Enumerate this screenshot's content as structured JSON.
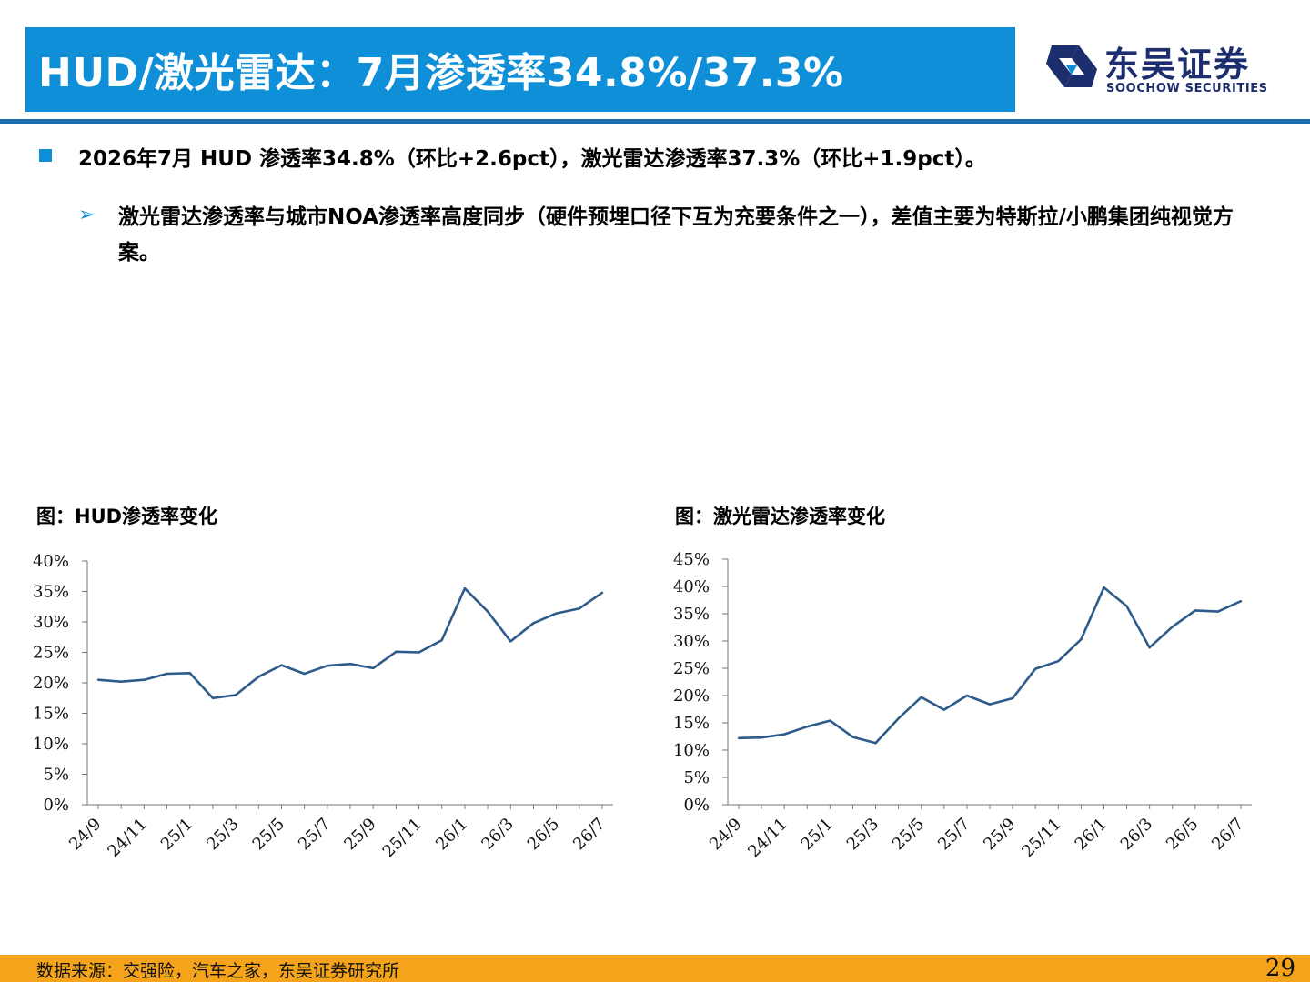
{
  "header": {
    "title": "HUD/激光雷达：7月渗透率34.8%/37.3%",
    "logo_cn": "东吴证券",
    "logo_en": "SOOCHOW SECURITIES",
    "accent": "#0e8fd8",
    "logo_color": "#1d2e6e"
  },
  "bullets": {
    "main": "2026年7月 HUD 渗透率34.8%（环比+2.6pct），激光雷达渗透率37.3%（环比+1.9pct）。",
    "sub_marker": "➢",
    "sub": "激光雷达渗透率与城市NOA渗透率高度同步（硬件预埋口径下互为充要条件之一），差值主要为特斯拉/小鹏集团纯视觉方案。"
  },
  "chart_data": [
    {
      "type": "line",
      "title": "图：HUD渗透率变化",
      "x": [
        "24/9",
        "24/10",
        "24/11",
        "24/12",
        "25/1",
        "25/2",
        "25/3",
        "25/4",
        "25/5",
        "25/6",
        "25/7",
        "25/8",
        "25/9",
        "25/10",
        "25/11",
        "25/12",
        "26/1",
        "26/2",
        "26/3",
        "26/4",
        "26/5",
        "26/6",
        "26/7"
      ],
      "x_tick_labels": [
        "24/9",
        "24/11",
        "25/1",
        "25/3",
        "25/5",
        "25/7",
        "25/9",
        "25/11",
        "26/1",
        "26/3",
        "26/5",
        "26/7"
      ],
      "series": [
        {
          "values": [
            20.5,
            20.2,
            20.5,
            21.5,
            21.6,
            17.5,
            18.0,
            21.0,
            22.9,
            21.5,
            22.8,
            23.1,
            22.4,
            25.1,
            25.0,
            27.0,
            35.5,
            31.7,
            26.8,
            29.8,
            31.4,
            32.2,
            34.8
          ]
        }
      ],
      "ylim": [
        0,
        40
      ],
      "y_ticks": [
        0,
        5,
        10,
        15,
        20,
        25,
        30,
        35,
        40
      ],
      "y_tick_labels": [
        "0%",
        "5%",
        "10%",
        "15%",
        "20%",
        "25%",
        "30%",
        "35%",
        "40%"
      ],
      "line_color": "#2e5b8a",
      "grid": false
    },
    {
      "type": "line",
      "title": "图：激光雷达渗透率变化",
      "x": [
        "24/9",
        "24/10",
        "24/11",
        "24/12",
        "25/1",
        "25/2",
        "25/3",
        "25/4",
        "25/5",
        "25/6",
        "25/7",
        "25/8",
        "25/9",
        "25/10",
        "25/11",
        "25/12",
        "26/1",
        "26/2",
        "26/3",
        "26/4",
        "26/5",
        "26/6",
        "26/7"
      ],
      "x_tick_labels": [
        "24/9",
        "24/11",
        "25/1",
        "25/3",
        "25/5",
        "25/7",
        "25/9",
        "25/11",
        "26/1",
        "26/3",
        "26/5",
        "26/7"
      ],
      "series": [
        {
          "values": [
            12.2,
            12.3,
            12.9,
            14.3,
            15.4,
            12.4,
            11.3,
            15.8,
            19.7,
            17.4,
            20.0,
            18.4,
            19.5,
            24.9,
            26.3,
            30.3,
            39.8,
            36.4,
            28.8,
            32.6,
            35.6,
            35.4,
            37.3
          ]
        }
      ],
      "ylim": [
        0,
        45
      ],
      "y_ticks": [
        0,
        5,
        10,
        15,
        20,
        25,
        30,
        35,
        40,
        45
      ],
      "y_tick_labels": [
        "0%",
        "5%",
        "10%",
        "15%",
        "20%",
        "25%",
        "30%",
        "35%",
        "40%",
        "45%"
      ],
      "line_color": "#2e5b8a",
      "grid": false
    }
  ],
  "footer": {
    "source": "数据来源：交强险，汽车之家，东吴证券研究所",
    "page": "29",
    "bar_color": "#f5a31b"
  }
}
